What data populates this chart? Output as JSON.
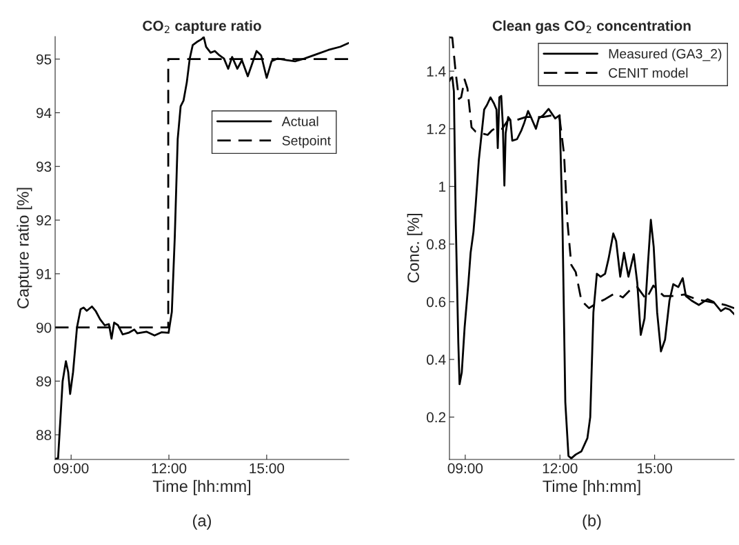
{
  "chart_data": [
    {
      "type": "line",
      "title": "CO$_{2}$ capture ratio",
      "xlabel": "Time [hh:mm]",
      "ylabel": "Capture ratio [%]",
      "annotations": [
        "(a)"
      ],
      "xlim": [
        8.51,
        17.52
      ],
      "xticks": [
        {
          "value": 9,
          "label": "09:00"
        },
        {
          "value": 12,
          "label": "12:00"
        },
        {
          "value": 15,
          "label": "15:00"
        }
      ],
      "ylim": [
        87.54,
        95.42
      ],
      "yticks": [
        88,
        89,
        90,
        91,
        92,
        93,
        94,
        95
      ],
      "grid": false,
      "legend": "right",
      "series": [
        {
          "name": "Actual",
          "color": "#000000",
          "line_style": "solid",
          "x": [
            8.51,
            8.6,
            8.74,
            8.84,
            8.91,
            8.97,
            9.06,
            9.18,
            9.29,
            9.38,
            9.48,
            9.64,
            9.75,
            9.89,
            10.03,
            10.16,
            10.24,
            10.32,
            10.44,
            10.58,
            10.76,
            10.94,
            11.03,
            11.31,
            11.56,
            11.77,
            11.99,
            12.09,
            12.18,
            12.27,
            12.36,
            12.45,
            12.55,
            12.64,
            12.73,
            12.86,
            13.0,
            13.07,
            13.14,
            13.28,
            13.41,
            13.55,
            13.69,
            13.82,
            13.94,
            14.1,
            14.24,
            14.42,
            14.69,
            14.83,
            15.0,
            15.15,
            15.33,
            15.61,
            15.88,
            16.16,
            16.53,
            16.89,
            17.26,
            17.52
          ],
          "values": [
            87.55,
            87.56,
            89.0,
            89.37,
            89.17,
            88.76,
            89.17,
            90.0,
            90.34,
            90.37,
            90.31,
            90.39,
            90.31,
            90.15,
            90.04,
            90.06,
            89.79,
            90.09,
            90.04,
            89.87,
            89.9,
            89.96,
            89.89,
            89.92,
            89.85,
            89.91,
            89.9,
            90.29,
            91.68,
            93.51,
            94.12,
            94.23,
            94.57,
            95.01,
            95.26,
            95.32,
            95.37,
            95.41,
            95.23,
            95.12,
            95.15,
            95.07,
            95.01,
            94.82,
            95.04,
            94.82,
            94.98,
            94.68,
            95.15,
            95.07,
            94.65,
            94.96,
            95.01,
            94.98,
            94.96,
            95.01,
            95.09,
            95.17,
            95.23,
            95.3
          ]
        },
        {
          "name": "Setpoint",
          "color": "#000000",
          "line_style": "dashed",
          "x": [
            8.51,
            11.98,
            11.98,
            17.52
          ],
          "values": [
            90,
            90,
            95,
            95
          ]
        }
      ]
    },
    {
      "type": "line",
      "title": "Clean gas CO$_{2}$ concentration",
      "xlabel": "Time [hh:mm]",
      "ylabel": "Conc. [%]",
      "annotations": [
        "(b)"
      ],
      "xlim": [
        8.5,
        17.52
      ],
      "xticks": [
        {
          "value": 9,
          "label": "09:00"
        },
        {
          "value": 12,
          "label": "12:00"
        },
        {
          "value": 15,
          "label": "15:00"
        }
      ],
      "ylim": [
        0.053,
        1.52
      ],
      "yticks": [
        0.2,
        0.4,
        0.6,
        0.8,
        1,
        1.2,
        1.4
      ],
      "grid": false,
      "legend": "top right",
      "series": [
        {
          "name": "Measured (GA3_2)",
          "color": "#000000",
          "line_style": "solid",
          "x": [
            8.5,
            8.54,
            8.59,
            8.64,
            8.7,
            8.78,
            8.82,
            8.89,
            8.98,
            9.1,
            9.17,
            9.26,
            9.33,
            9.43,
            9.5,
            9.6,
            9.69,
            9.8,
            9.91,
            9.99,
            10.03,
            10.08,
            10.14,
            10.19,
            10.24,
            10.28,
            10.36,
            10.43,
            10.49,
            10.64,
            10.78,
            10.87,
            10.99,
            11.1,
            11.24,
            11.33,
            11.47,
            11.64,
            11.75,
            11.85,
            11.99,
            12.08,
            12.17,
            12.27,
            12.36,
            12.5,
            12.68,
            12.87,
            12.96,
            13.06,
            13.17,
            13.29,
            13.43,
            13.54,
            13.69,
            13.78,
            13.91,
            14.03,
            14.17,
            14.34,
            14.45,
            14.56,
            14.68,
            14.78,
            14.88,
            14.97,
            15.08,
            15.2,
            15.33,
            15.47,
            15.59,
            15.75,
            15.89,
            15.99,
            16.17,
            16.4,
            16.68,
            16.87,
            17.1,
            17.24,
            17.38,
            17.52
          ],
          "values": [
            1.366,
            1.376,
            1.379,
            1.33,
            0.874,
            0.459,
            0.314,
            0.355,
            0.511,
            0.666,
            0.77,
            0.842,
            0.936,
            1.091,
            1.164,
            1.267,
            1.283,
            1.309,
            1.288,
            1.267,
            1.133,
            1.309,
            1.314,
            1.216,
            1.003,
            1.185,
            1.241,
            1.231,
            1.159,
            1.164,
            1.195,
            1.221,
            1.262,
            1.236,
            1.2,
            1.236,
            1.247,
            1.269,
            1.252,
            1.236,
            1.247,
            0.874,
            0.252,
            0.065,
            0.057,
            0.07,
            0.081,
            0.127,
            0.2,
            0.563,
            0.697,
            0.687,
            0.697,
            0.749,
            0.837,
            0.811,
            0.687,
            0.77,
            0.687,
            0.765,
            0.666,
            0.485,
            0.542,
            0.718,
            0.884,
            0.791,
            0.563,
            0.428,
            0.469,
            0.604,
            0.661,
            0.651,
            0.682,
            0.62,
            0.604,
            0.589,
            0.609,
            0.599,
            0.568,
            0.578,
            0.573,
            0.557
          ]
        },
        {
          "name": "CENIT model",
          "color": "#000000",
          "line_style": "dashed",
          "x": [
            8.5,
            8.59,
            8.7,
            8.8,
            8.87,
            8.98,
            9.07,
            9.2,
            9.33,
            9.52,
            9.71,
            9.85,
            9.99,
            10.17,
            10.36,
            10.64,
            10.92,
            11.2,
            11.47,
            11.75,
            11.99,
            12.13,
            12.24,
            12.36,
            12.5,
            12.68,
            12.92,
            13.15,
            13.43,
            13.75,
            13.99,
            14.27,
            14.45,
            14.73,
            14.96,
            15.29,
            15.57,
            15.94,
            16.31,
            16.78,
            17.24,
            17.52
          ],
          "values": [
            1.518,
            1.516,
            1.392,
            1.304,
            1.309,
            1.371,
            1.34,
            1.205,
            1.19,
            1.184,
            1.179,
            1.195,
            1.205,
            1.2,
            1.231,
            1.231,
            1.241,
            1.241,
            1.241,
            1.247,
            1.236,
            1.112,
            0.874,
            0.728,
            0.703,
            0.604,
            0.578,
            0.594,
            0.609,
            0.63,
            0.615,
            0.646,
            0.651,
            0.609,
            0.656,
            0.62,
            0.62,
            0.625,
            0.609,
            0.599,
            0.589,
            0.578
          ]
        }
      ]
    }
  ]
}
